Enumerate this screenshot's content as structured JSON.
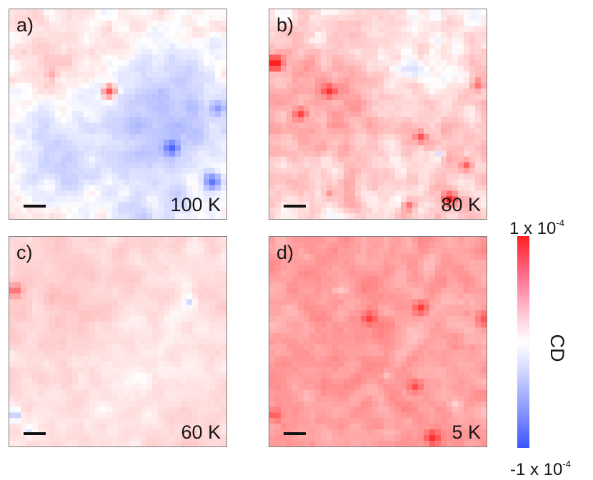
{
  "chart_data": [
    {
      "type": "heatmap",
      "panel_label": "a)",
      "temperature_label": "100 K",
      "value_range": [
        -0.0001,
        0.0001
      ],
      "colormap": "blue-white-red"
    },
    {
      "type": "heatmap",
      "panel_label": "b)",
      "temperature_label": "80 K",
      "value_range": [
        -0.0001,
        0.0001
      ],
      "colormap": "blue-white-red"
    },
    {
      "type": "heatmap",
      "panel_label": "c)",
      "temperature_label": "60 K",
      "value_range": [
        -0.0001,
        0.0001
      ],
      "colormap": "blue-white-red"
    },
    {
      "type": "heatmap",
      "panel_label": "d)",
      "temperature_label": "5 K",
      "value_range": [
        -0.0001,
        0.0001
      ],
      "colormap": "blue-white-red"
    }
  ],
  "colorbar": {
    "max_label": "1 x 10",
    "max_exponent": "-4",
    "min_label": "-1 x 10",
    "min_exponent": "-4",
    "quantity_label": "CD"
  },
  "colors": {
    "negative": "#3b55ff",
    "zero": "#ffffff",
    "positive": "#ff1f1f"
  }
}
